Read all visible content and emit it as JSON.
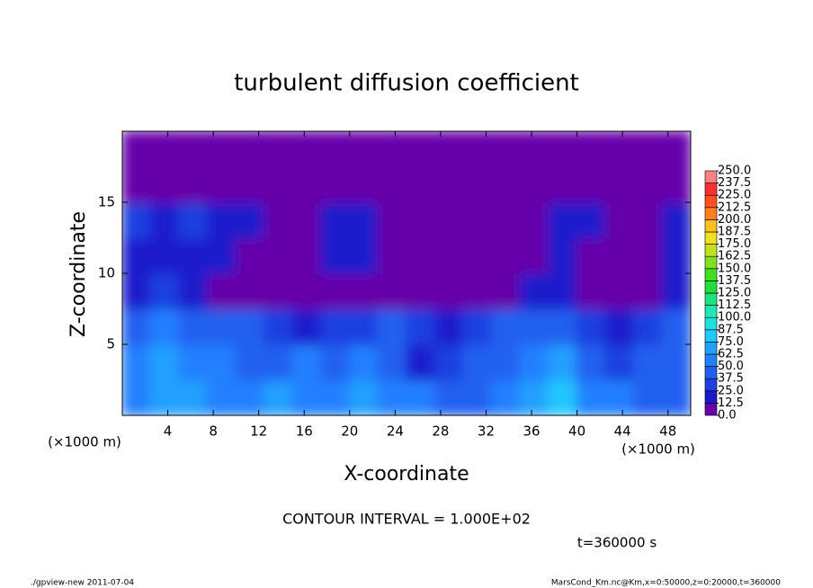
{
  "chart_data": {
    "type": "heatmap",
    "title": "turbulent diffusion coefficient",
    "x_label": "X-coordinate",
    "y_label": "Z-coordinate",
    "x_unit": "(×1000 m)",
    "y_unit": "(×1000 m)",
    "xlim": [
      0,
      50
    ],
    "ylim": [
      0,
      20
    ],
    "xticks": [
      4,
      8,
      12,
      16,
      20,
      24,
      28,
      32,
      36,
      40,
      44,
      48
    ],
    "yticks": [
      5,
      10,
      15
    ],
    "z": [
      [
        50,
        62.5,
        62.5,
        50,
        50,
        62.5,
        50,
        50,
        62.5,
        50,
        50,
        37.5,
        37.5,
        50,
        62.5,
        75,
        50,
        50,
        37.5,
        37.5
      ],
      [
        50,
        62.5,
        50,
        50,
        37.5,
        37.5,
        50,
        37.5,
        50,
        37.5,
        12.5,
        25,
        37.5,
        37.5,
        50,
        62.5,
        37.5,
        25,
        37.5,
        37.5
      ],
      [
        37.5,
        50,
        37.5,
        37.5,
        37.5,
        25,
        12.5,
        25,
        25,
        37.5,
        25,
        12.5,
        25,
        37.5,
        37.5,
        37.5,
        25,
        12.5,
        25,
        37.5
      ],
      [
        12.5,
        25,
        12.5,
        0,
        0,
        0,
        0,
        0,
        0,
        0,
        0,
        0,
        0,
        0,
        12.5,
        12.5,
        0,
        0,
        0,
        12.5
      ],
      [
        12.5,
        12.5,
        12.5,
        12.5,
        0,
        0,
        0,
        12.5,
        12.5,
        0,
        0,
        0,
        0,
        0,
        0,
        12.5,
        0,
        0,
        0,
        12.5
      ],
      [
        25,
        12.5,
        25,
        12.5,
        12.5,
        0,
        0,
        12.5,
        12.5,
        0,
        0,
        0,
        0,
        0,
        0,
        12.5,
        12.5,
        0,
        0,
        12.5
      ],
      [
        0,
        0,
        0,
        0,
        0,
        0,
        0,
        0,
        0,
        0,
        0,
        0,
        0,
        0,
        0,
        0,
        0,
        0,
        0,
        0
      ],
      [
        0,
        0,
        0,
        0,
        0,
        0,
        0,
        0,
        0,
        0,
        0,
        0,
        0,
        0,
        0,
        0,
        0,
        0,
        0,
        0
      ]
    ],
    "colorbar_ticks": [
      {
        "value": 0,
        "label": "0.0"
      },
      {
        "value": 12.5,
        "label": "12.5"
      },
      {
        "value": 25,
        "label": "25.0"
      },
      {
        "value": 37.5,
        "label": "37.5"
      },
      {
        "value": 50,
        "label": "50.0"
      },
      {
        "value": 62.5,
        "label": "62.5"
      },
      {
        "value": 75,
        "label": "75.0"
      },
      {
        "value": 87.5,
        "label": "87.5"
      },
      {
        "value": 100,
        "label": "100.0"
      },
      {
        "value": 112.5,
        "label": "112.5"
      },
      {
        "value": 125,
        "label": "125.0"
      },
      {
        "value": 137.5,
        "label": "137.5"
      },
      {
        "value": 150,
        "label": "150.0"
      },
      {
        "value": 162.5,
        "label": "162.5"
      },
      {
        "value": 175,
        "label": "175.0"
      },
      {
        "value": 187.5,
        "label": "187.5"
      },
      {
        "value": 200,
        "label": "200.0"
      },
      {
        "value": 212.5,
        "label": "212.5"
      },
      {
        "value": 225,
        "label": "225.0"
      },
      {
        "value": 237.5,
        "label": "237.5"
      },
      {
        "value": 250,
        "label": "250.0"
      }
    ],
    "colors": [
      "#6600aa",
      "#1a1acc",
      "#1f3fe0",
      "#2060f0",
      "#2080ff",
      "#20a0ff",
      "#20c8ff",
      "#20e0e0",
      "#20e8b0",
      "#20e080",
      "#20e040",
      "#40e020",
      "#80e020",
      "#c0e020",
      "#f0e020",
      "#ffc020",
      "#ff8020",
      "#ff5020",
      "#ff3030",
      "#ff8080"
    ],
    "annotations": [
      "CONTOUR INTERVAL = 1.000E+02",
      "t=360000 s"
    ],
    "footer_left": "./gpview-new  2011-07-04",
    "footer_right": "MarsCond_Km.nc@Km,x=0:50000,z=0:20000,t=360000"
  }
}
